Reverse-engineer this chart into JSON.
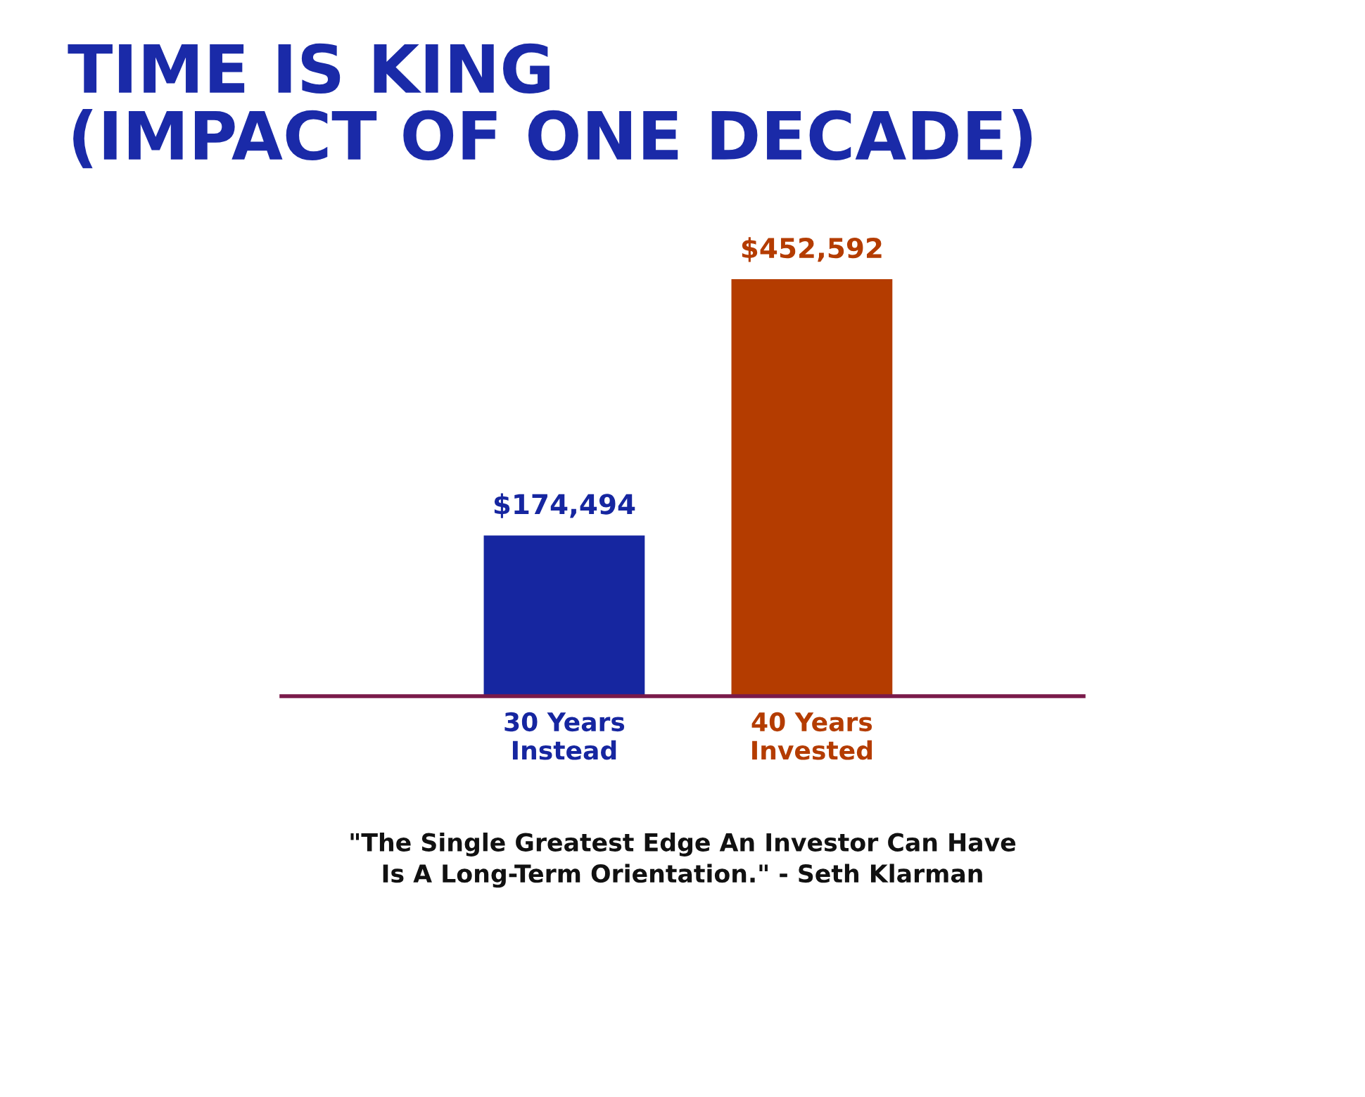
{
  "chart_data": {
    "type": "bar",
    "title": "TIME IS KING\n(IMPACT OF ONE DECADE)",
    "categories": [
      "30 Years\nInstead",
      "40 Years\nInvested"
    ],
    "values": [
      174494,
      452592
    ],
    "colors": [
      "#1626a0",
      "#b43c00"
    ],
    "value_labels": [
      "$174,494",
      "$452,592"
    ],
    "annotations": [
      "\"The Single Greatest Edge An Investor Can Have\nIs A Long-Term Orientation.\" - Seth Klarman"
    ],
    "grid": false,
    "legend": false
  }
}
